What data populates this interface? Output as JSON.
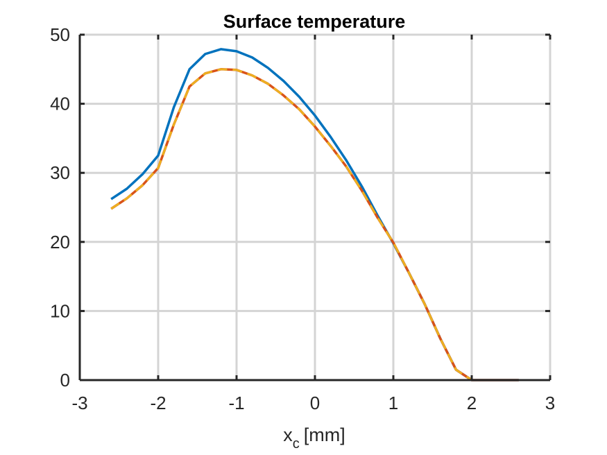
{
  "chart_data": {
    "type": "line",
    "title": "Surface temperature",
    "xlabel": {
      "main": "x",
      "subscript": "c",
      "unit": "[mm]"
    },
    "ylabel": "",
    "xlim": [
      -3,
      3
    ],
    "ylim": [
      0,
      50
    ],
    "xticks": [
      -3,
      -2,
      -1,
      0,
      1,
      2,
      3
    ],
    "yticks": [
      0,
      10,
      20,
      30,
      40,
      50
    ],
    "xtick_labels": [
      "-3",
      "-2",
      "-1",
      "0",
      "1",
      "2",
      "3"
    ],
    "ytick_labels": [
      "0",
      "10",
      "20",
      "30",
      "40",
      "50"
    ],
    "grid": true,
    "series": [
      {
        "color": "#0072bd",
        "style": "solid",
        "x": [
          -2.6,
          -2.4,
          -2.2,
          -2.0,
          -1.8,
          -1.6,
          -1.4,
          -1.2,
          -1.0,
          -0.8,
          -0.6,
          -0.4,
          -0.2,
          0.0,
          0.2,
          0.4,
          0.6,
          0.8,
          1.0,
          1.2,
          1.4,
          1.6,
          1.8,
          2.0,
          2.2,
          2.4,
          2.6
        ],
        "y": [
          26.2,
          27.7,
          29.8,
          32.5,
          39.5,
          45.0,
          47.2,
          47.9,
          47.6,
          46.7,
          45.2,
          43.3,
          41.0,
          38.3,
          35.2,
          31.8,
          28.0,
          23.8,
          19.8,
          15.5,
          11.0,
          6.0,
          1.5,
          0,
          0,
          0,
          0
        ]
      },
      {
        "color": "#d95319",
        "style": "solid",
        "x": [
          -2.6,
          -2.4,
          -2.2,
          -2.0,
          -1.8,
          -1.6,
          -1.4,
          -1.2,
          -1.0,
          -0.8,
          -0.6,
          -0.4,
          -0.2,
          0.0,
          0.2,
          0.4,
          0.6,
          0.8,
          1.0,
          1.2,
          1.4,
          1.6,
          1.8,
          2.0,
          2.2,
          2.4,
          2.6
        ],
        "y": [
          24.8,
          26.3,
          28.2,
          30.7,
          37.0,
          42.5,
          44.4,
          45.0,
          44.9,
          44.1,
          42.9,
          41.2,
          39.2,
          36.7,
          33.9,
          30.9,
          27.4,
          23.5,
          19.9,
          15.5,
          11.0,
          6.0,
          1.5,
          0,
          0,
          0,
          0
        ]
      },
      {
        "color": "#edb120",
        "style": "dashed",
        "x": [
          -2.6,
          -2.4,
          -2.2,
          -2.0,
          -1.8,
          -1.6,
          -1.4,
          -1.2,
          -1.0,
          -0.8,
          -0.6,
          -0.4,
          -0.2,
          0.0,
          0.2,
          0.4,
          0.6,
          0.8,
          1.0,
          1.2,
          1.4,
          1.6,
          1.8,
          2.0,
          2.2,
          2.4,
          2.6
        ],
        "y": [
          24.8,
          26.3,
          28.2,
          30.7,
          37.0,
          42.5,
          44.4,
          45.0,
          44.9,
          44.1,
          42.9,
          41.2,
          39.2,
          36.7,
          33.9,
          30.9,
          27.4,
          23.5,
          19.9,
          15.5,
          11.0,
          6.0,
          1.5,
          0,
          0,
          0,
          0
        ]
      }
    ]
  }
}
